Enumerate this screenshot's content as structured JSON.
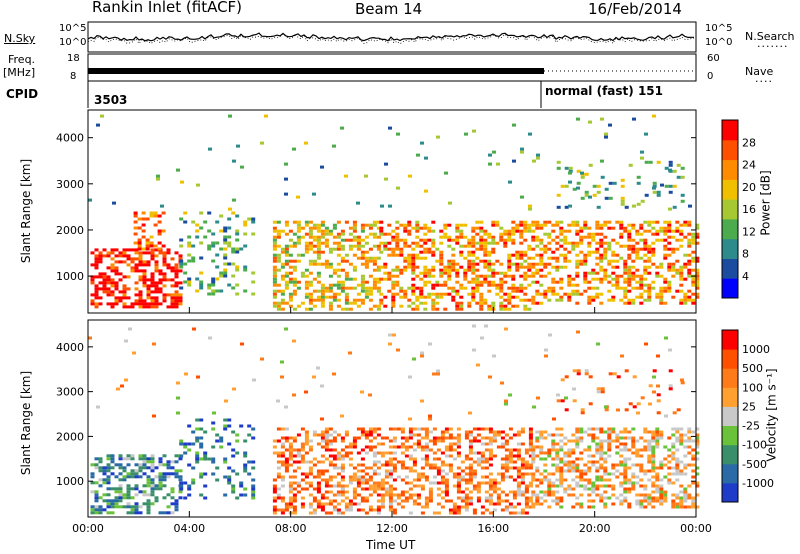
{
  "header": {
    "station": "Rankin Inlet (fitACF)",
    "beam": "Beam 14",
    "date": "16/Feb/2014"
  },
  "panels": {
    "nsky": {
      "left_label": "N.Sky",
      "right_label": "N.Search",
      "left_ticks": [
        "10^5",
        "10^0"
      ],
      "right_ticks": [
        "10^5",
        "10^0"
      ]
    },
    "freq": {
      "left_label_top": "Freq.",
      "left_label_bottom": "[MHz]",
      "right_label": "Nave",
      "left_ticks": [
        "18",
        "8"
      ],
      "right_ticks": [
        "60",
        "0"
      ]
    },
    "cpid": {
      "label": "CPID",
      "segments": [
        {
          "text": "3503",
          "start_hour": 0
        },
        {
          "text": "normal (fast) 151",
          "start_hour": 18
        }
      ]
    }
  },
  "chart_data": [
    {
      "type": "heatmap",
      "name": "power",
      "ylabel": "Slant Range [km]",
      "ylim": [
        200,
        4600
      ],
      "yticks": [
        "1000",
        "2000",
        "3000",
        "4000"
      ],
      "xlim_hours": [
        0,
        24
      ],
      "colorbar_label": "Power [dB]",
      "colorbar_ticks": [
        "28",
        "24",
        "20",
        "16",
        "12",
        "8",
        "4"
      ],
      "colorbar_colors": [
        "#0000ff",
        "#1c4ca0",
        "#2e8b8b",
        "#4cab4c",
        "#a6c832",
        "#f0c000",
        "#ff8c00",
        "#ff5000",
        "#ff0000"
      ]
    },
    {
      "type": "heatmap",
      "name": "velocity",
      "ylabel": "Slant Range [km]",
      "ylim": [
        200,
        4600
      ],
      "yticks": [
        "1000",
        "2000",
        "3000",
        "4000"
      ],
      "xlim_hours": [
        0,
        24
      ],
      "xticks": [
        "00:00",
        "04:00",
        "08:00",
        "12:00",
        "16:00",
        "20:00",
        "00:00"
      ],
      "xlabel": "Time UT",
      "colorbar_label": "Velocity [m s⁻¹]",
      "colorbar_ticks": [
        "1000",
        "500",
        "100",
        "25",
        "-25",
        "-100",
        "-500",
        "-1000"
      ],
      "colorbar_colors": [
        "#1e3cc8",
        "#2a6aa6",
        "#3a8f6a",
        "#6ac23a",
        "#c8c8c8",
        "#ffa030",
        "#ff7a18",
        "#ff5000",
        "#ff0000"
      ]
    }
  ],
  "scatter_regions": [
    {
      "panel": "power",
      "t0": 0.1,
      "t1": 3.6,
      "r0": 300,
      "r1": 1600,
      "density": 0.55,
      "bias": 8
    },
    {
      "panel": "power",
      "t0": 1.8,
      "t1": 3.0,
      "r0": 1600,
      "r1": 2400,
      "density": 0.3,
      "bias": 7
    },
    {
      "panel": "power",
      "t0": 3.6,
      "t1": 6.6,
      "r0": 600,
      "r1": 2400,
      "density": 0.22,
      "bias": 3
    },
    {
      "panel": "power",
      "t0": 7.3,
      "t1": 11.5,
      "r0": 300,
      "r1": 2200,
      "density": 0.45,
      "bias": 5
    },
    {
      "panel": "power",
      "t0": 11.5,
      "t1": 17.5,
      "r0": 300,
      "r1": 2200,
      "density": 0.45,
      "bias": 6
    },
    {
      "panel": "power",
      "t0": 17.5,
      "t1": 24,
      "r0": 400,
      "r1": 2200,
      "density": 0.45,
      "bias": 6
    },
    {
      "panel": "power",
      "t0": 18.5,
      "t1": 23.5,
      "r0": 2500,
      "r1": 3500,
      "density": 0.12,
      "bias": 3
    },
    {
      "panel": "power",
      "t0": 0,
      "t1": 24,
      "r0": 2400,
      "r1": 4500,
      "density": 0.015,
      "bias": 3
    },
    {
      "panel": "velocity",
      "t0": 0.1,
      "t1": 3.6,
      "r0": 300,
      "r1": 1600,
      "density": 0.5,
      "bias": 2
    },
    {
      "panel": "velocity",
      "t0": 3.6,
      "t1": 6.6,
      "r0": 600,
      "r1": 2400,
      "density": 0.22,
      "bias": 1
    },
    {
      "panel": "velocity",
      "t0": 7.3,
      "t1": 17.5,
      "r0": 300,
      "r1": 2200,
      "density": 0.45,
      "bias": 6
    },
    {
      "panel": "velocity",
      "t0": 17.5,
      "t1": 24,
      "r0": 400,
      "r1": 2200,
      "density": 0.45,
      "bias": 5
    },
    {
      "panel": "velocity",
      "t0": 18.5,
      "t1": 23.5,
      "r0": 2500,
      "r1": 3500,
      "density": 0.12,
      "bias": 6
    },
    {
      "panel": "velocity",
      "t0": 0,
      "t1": 24,
      "r0": 2400,
      "r1": 4500,
      "density": 0.015,
      "bias": 5
    }
  ]
}
